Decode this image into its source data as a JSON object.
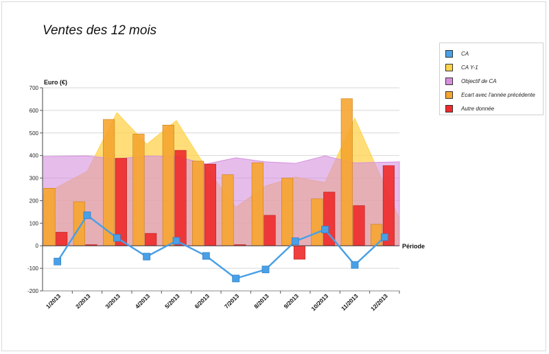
{
  "chart_data": {
    "type": "bar",
    "title": "Ventes des 12 mois",
    "ylabel": "Euro (€)",
    "xlabel": "Période",
    "ylim": [
      -200,
      700
    ],
    "yticks": [
      -200,
      -100,
      0,
      100,
      200,
      300,
      400,
      500,
      600,
      700
    ],
    "categories": [
      "1/2013",
      "2/2013",
      "3/2013",
      "4/2013",
      "5/2013",
      "6/2013",
      "7/2013",
      "8/2013",
      "9/2013",
      "10/2013",
      "11/2013",
      "12/2013"
    ],
    "grid": true,
    "legend_position": "right",
    "series": [
      {
        "name": "CA",
        "type": "line",
        "color": "#4aa0e6",
        "values": [
          -70,
          135,
          35,
          -48,
          22,
          -45,
          -145,
          -105,
          20,
          72,
          -85,
          38
        ]
      },
      {
        "name": "CA Y-1",
        "type": "area",
        "color": "#ffd34d",
        "values": [
          225,
          330,
          590,
          450,
          555,
          345,
          170,
          265,
          305,
          280,
          565,
          120
        ]
      },
      {
        "name": "Objectif de CA",
        "type": "area",
        "color": "#d68fde",
        "values": [
          395,
          398,
          385,
          398,
          396,
          362,
          390,
          372,
          365,
          398,
          367,
          372
        ]
      },
      {
        "name": "Ecart avec l'année précédente",
        "type": "bar",
        "color": "#f6a530",
        "values": [
          255,
          195,
          560,
          495,
          535,
          375,
          315,
          368,
          300,
          208,
          652,
          95
        ]
      },
      {
        "name": "Autre donnée",
        "type": "bar",
        "color": "#ee2a2a",
        "values": [
          60,
          5,
          388,
          55,
          423,
          362,
          5,
          135,
          -60,
          238,
          178,
          355
        ]
      }
    ]
  }
}
